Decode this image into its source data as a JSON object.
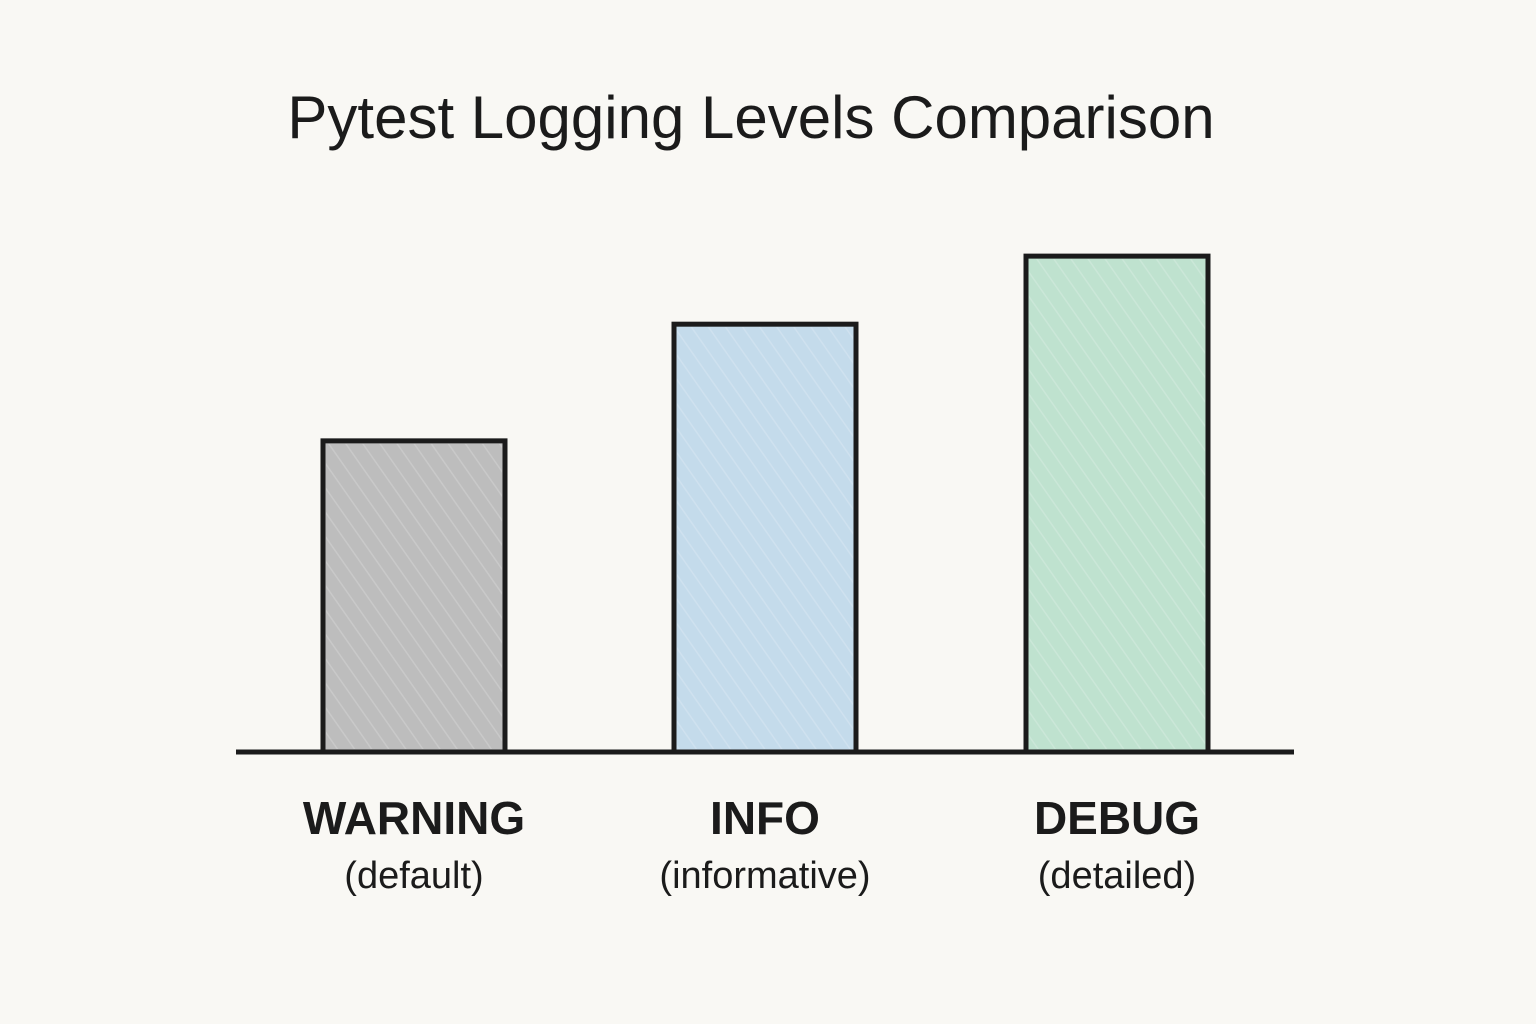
{
  "chart_data": {
    "type": "bar",
    "title": "Pytest Logging Levels Comparison",
    "xlabel": "",
    "ylabel": "",
    "categories": [
      "WARNING",
      "INFO",
      "DEBUG"
    ],
    "category_subtitles": [
      "(default)",
      "(informative)",
      "(detailed)"
    ],
    "values": [
      32,
      44,
      51
    ],
    "ylim": [
      0,
      65
    ],
    "colors": [
      "#bdbdbd",
      "#c4dbeb",
      "#bfe2cf"
    ],
    "axis_color": "#1b1b1b",
    "grid": false,
    "legend": "none"
  }
}
